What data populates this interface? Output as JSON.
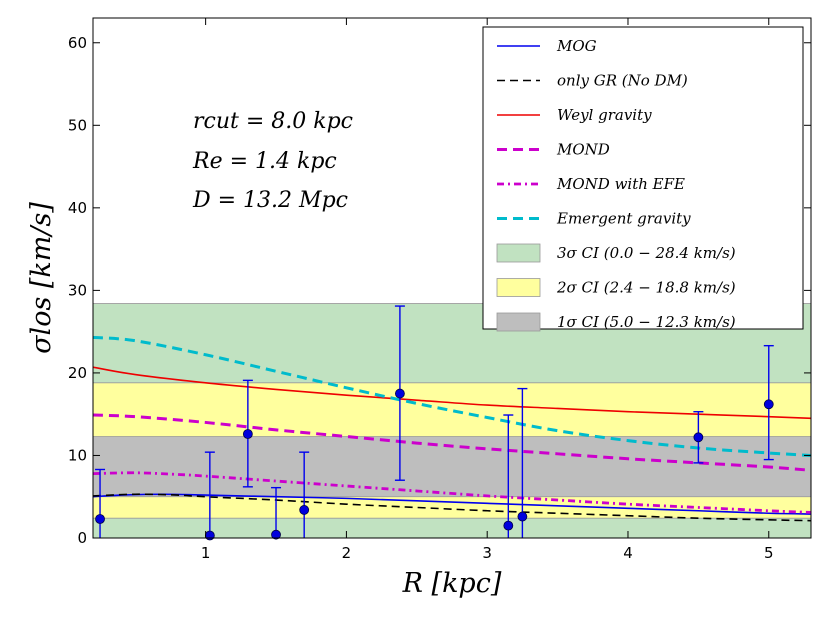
{
  "chart_data": {
    "type": "line",
    "xlabel": "R [kpc]",
    "ylabel": "σlos [km/s]",
    "xlim": [
      0.2,
      5.3
    ],
    "ylim": [
      0,
      63
    ],
    "xticks": [
      1,
      2,
      3,
      4,
      5
    ],
    "yticks": [
      0,
      10,
      20,
      30,
      40,
      50,
      60
    ],
    "annotations": [
      "rcut = 8.0 kpc",
      "Re = 1.4 kpc",
      "D = 13.2 Mpc"
    ],
    "bands": [
      {
        "name": "3σ CI (0.0 − 28.4 km/s)",
        "range": [
          0.0,
          28.4
        ],
        "color": "#c1e2c1"
      },
      {
        "name": "2σ CI (2.4 − 18.8 km/s)",
        "range": [
          2.4,
          18.8
        ],
        "color": "#ffff9e"
      },
      {
        "name": "1σ CI (5.0 − 12.3 km/s)",
        "range": [
          5.0,
          12.3
        ],
        "color": "#bebebe"
      }
    ],
    "series": [
      {
        "name": "MOG",
        "color": "#0000ee",
        "dash": "solid",
        "points": [
          [
            0.2,
            5.0
          ],
          [
            0.4,
            5.2
          ],
          [
            0.7,
            5.3
          ],
          [
            1.0,
            5.2
          ],
          [
            1.5,
            5.0
          ],
          [
            2.0,
            4.8
          ],
          [
            2.5,
            4.5
          ],
          [
            3.0,
            4.2
          ],
          [
            3.5,
            3.9
          ],
          [
            4.0,
            3.6
          ],
          [
            4.5,
            3.3
          ],
          [
            5.0,
            3.0
          ],
          [
            5.3,
            2.9
          ]
        ]
      },
      {
        "name": "only GR (No DM)",
        "color": "#000000",
        "dash": "dashed",
        "points": [
          [
            0.2,
            5.1
          ],
          [
            0.5,
            5.3
          ],
          [
            0.8,
            5.2
          ],
          [
            1.0,
            5.0
          ],
          [
            1.5,
            4.6
          ],
          [
            2.0,
            4.1
          ],
          [
            2.5,
            3.7
          ],
          [
            3.0,
            3.3
          ],
          [
            3.5,
            3.0
          ],
          [
            4.0,
            2.7
          ],
          [
            4.5,
            2.4
          ],
          [
            5.0,
            2.2
          ],
          [
            5.3,
            2.1
          ]
        ]
      },
      {
        "name": "Weyl gravity",
        "color": "#ee0000",
        "dash": "solid",
        "points": [
          [
            0.2,
            20.7
          ],
          [
            0.5,
            19.8
          ],
          [
            1.0,
            18.8
          ],
          [
            1.5,
            18.0
          ],
          [
            2.0,
            17.3
          ],
          [
            2.5,
            16.7
          ],
          [
            3.0,
            16.1
          ],
          [
            3.5,
            15.7
          ],
          [
            4.0,
            15.3
          ],
          [
            4.5,
            15.0
          ],
          [
            5.0,
            14.7
          ],
          [
            5.3,
            14.5
          ]
        ]
      },
      {
        "name": "MOND",
        "color": "#cc00cc",
        "dash": "thick-dashed",
        "points": [
          [
            0.2,
            14.9
          ],
          [
            0.5,
            14.7
          ],
          [
            1.0,
            14.0
          ],
          [
            1.5,
            13.1
          ],
          [
            2.0,
            12.3
          ],
          [
            2.5,
            11.5
          ],
          [
            3.0,
            10.8
          ],
          [
            3.5,
            10.2
          ],
          [
            4.0,
            9.6
          ],
          [
            4.5,
            9.1
          ],
          [
            5.0,
            8.6
          ],
          [
            5.3,
            8.2
          ]
        ]
      },
      {
        "name": "MOND with EFE",
        "color": "#cc00cc",
        "dash": "dashdot",
        "points": [
          [
            0.2,
            7.8
          ],
          [
            0.5,
            7.9
          ],
          [
            0.8,
            7.7
          ],
          [
            1.0,
            7.5
          ],
          [
            1.5,
            6.9
          ],
          [
            2.0,
            6.3
          ],
          [
            2.5,
            5.7
          ],
          [
            3.0,
            5.1
          ],
          [
            3.5,
            4.6
          ],
          [
            4.0,
            4.1
          ],
          [
            4.5,
            3.7
          ],
          [
            5.0,
            3.3
          ],
          [
            5.3,
            3.1
          ]
        ]
      },
      {
        "name": "Emergent gravity",
        "color": "#00bbcc",
        "dash": "thick-dashed",
        "points": [
          [
            0.2,
            24.3
          ],
          [
            0.5,
            23.9
          ],
          [
            1.0,
            22.2
          ],
          [
            1.5,
            20.2
          ],
          [
            2.0,
            18.2
          ],
          [
            2.5,
            16.3
          ],
          [
            3.0,
            14.6
          ],
          [
            3.5,
            13.0
          ],
          [
            4.0,
            11.8
          ],
          [
            4.5,
            10.9
          ],
          [
            5.0,
            10.3
          ],
          [
            5.3,
            10.0
          ]
        ]
      }
    ],
    "data_points": [
      {
        "x": 0.25,
        "y": 2.3,
        "lo": 0.0,
        "hi": 8.3
      },
      {
        "x": 1.03,
        "y": 0.3,
        "lo": 0.0,
        "hi": 10.4
      },
      {
        "x": 1.3,
        "y": 12.6,
        "lo": 6.2,
        "hi": 19.1
      },
      {
        "x": 1.5,
        "y": 0.4,
        "lo": 0.0,
        "hi": 6.1
      },
      {
        "x": 1.7,
        "y": 3.4,
        "lo": 0.0,
        "hi": 10.4
      },
      {
        "x": 2.38,
        "y": 17.5,
        "lo": 7.0,
        "hi": 28.1
      },
      {
        "x": 3.15,
        "y": 1.5,
        "lo": 0.0,
        "hi": 14.9
      },
      {
        "x": 3.25,
        "y": 2.6,
        "lo": 0.0,
        "hi": 18.1
      },
      {
        "x": 4.5,
        "y": 12.2,
        "lo": 9.1,
        "hi": 15.3
      },
      {
        "x": 5.0,
        "y": 16.2,
        "lo": 9.5,
        "hi": 23.3
      }
    ],
    "legend_position": "top-right"
  }
}
